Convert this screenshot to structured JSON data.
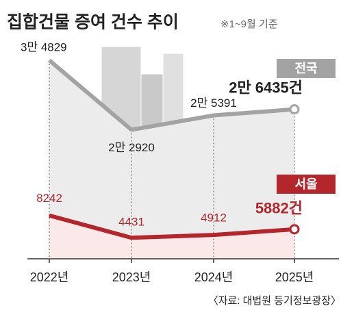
{
  "chart_data": {
    "type": "line",
    "title": "집합건물 증여 건수 추이",
    "subtitle": "※1~9월 기준",
    "source": "〈자료: 대법원 등기정보광장〉",
    "categories": [
      "2022년",
      "2023년",
      "2024년",
      "2025년"
    ],
    "ylim": [
      0,
      40000
    ],
    "series": [
      {
        "name": "전국",
        "color": "#a3a3a3",
        "area": "#ececec",
        "values": [
          34829,
          22920,
          25391,
          26435
        ],
        "value_labels": [
          "3만 4829",
          "2만 2920",
          "2만 5391",
          "2만 6435건"
        ]
      },
      {
        "name": "서울",
        "color": "#b3262c",
        "area": "#fbe9e9",
        "values": [
          8242,
          4431,
          4912,
          5882
        ],
        "value_labels": [
          "8242",
          "4431",
          "4912",
          "5882건"
        ]
      }
    ]
  }
}
